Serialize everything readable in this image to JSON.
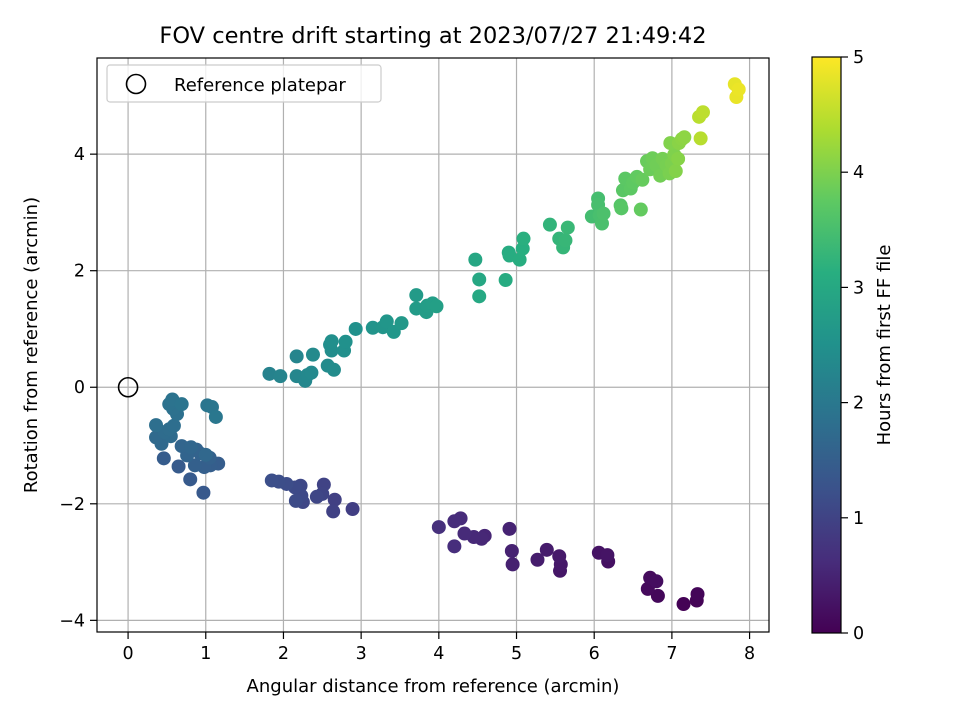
{
  "chart_data": {
    "type": "scatter",
    "title": "FOV centre drift starting at 2023/07/27 21:49:42",
    "xlabel": "Angular distance from reference (arcmin)",
    "ylabel": "Rotation from reference (arcmin)",
    "xlim": [
      -0.4,
      8.25
    ],
    "ylim": [
      -4.2,
      5.65
    ],
    "xticks": [
      0,
      1,
      2,
      3,
      4,
      5,
      6,
      7,
      8
    ],
    "yticks": [
      -4,
      -2,
      0,
      2,
      4
    ],
    "grid": true,
    "legend": {
      "placement": "top-left",
      "entries": [
        {
          "label": "Reference platepar",
          "marker": "open-circle"
        }
      ]
    },
    "reference_point": {
      "x": 0,
      "y": 0
    },
    "colorbar": {
      "label": "Hours from first FF file",
      "range": [
        0,
        5
      ],
      "ticks": [
        0,
        1,
        2,
        3,
        4,
        5
      ],
      "colormap": "viridis"
    },
    "points": [
      {
        "x": 7.15,
        "y": -3.72,
        "c": 0.02
      },
      {
        "x": 7.32,
        "y": -3.66,
        "c": 0.04
      },
      {
        "x": 7.33,
        "y": -3.55,
        "c": 0.06
      },
      {
        "x": 6.82,
        "y": -3.58,
        "c": 0.1
      },
      {
        "x": 6.69,
        "y": -3.46,
        "c": 0.13
      },
      {
        "x": 6.72,
        "y": -3.27,
        "c": 0.15
      },
      {
        "x": 6.8,
        "y": -3.33,
        "c": 0.17
      },
      {
        "x": 6.18,
        "y": -2.99,
        "c": 0.22
      },
      {
        "x": 6.06,
        "y": -2.84,
        "c": 0.25
      },
      {
        "x": 6.17,
        "y": -2.88,
        "c": 0.27
      },
      {
        "x": 5.56,
        "y": -3.15,
        "c": 0.31
      },
      {
        "x": 5.57,
        "y": -3.04,
        "c": 0.33
      },
      {
        "x": 5.55,
        "y": -2.9,
        "c": 0.36
      },
      {
        "x": 5.39,
        "y": -2.79,
        "c": 0.38
      },
      {
        "x": 5.27,
        "y": -2.96,
        "c": 0.4
      },
      {
        "x": 4.95,
        "y": -3.04,
        "c": 0.45
      },
      {
        "x": 4.94,
        "y": -2.81,
        "c": 0.47
      },
      {
        "x": 4.91,
        "y": -2.43,
        "c": 0.49
      },
      {
        "x": 4.59,
        "y": -2.55,
        "c": 0.53
      },
      {
        "x": 4.55,
        "y": -2.6,
        "c": 0.55
      },
      {
        "x": 4.45,
        "y": -2.57,
        "c": 0.57
      },
      {
        "x": 4.33,
        "y": -2.51,
        "c": 0.59
      },
      {
        "x": 4.28,
        "y": -2.25,
        "c": 0.61
      },
      {
        "x": 4.2,
        "y": -2.3,
        "c": 0.63
      },
      {
        "x": 4.2,
        "y": -2.73,
        "c": 0.65
      },
      {
        "x": 4.0,
        "y": -2.4,
        "c": 0.68
      },
      {
        "x": 2.89,
        "y": -2.09,
        "c": 0.92
      },
      {
        "x": 2.66,
        "y": -1.93,
        "c": 0.95
      },
      {
        "x": 2.64,
        "y": -2.13,
        "c": 0.97
      },
      {
        "x": 2.52,
        "y": -1.67,
        "c": 1.0
      },
      {
        "x": 2.5,
        "y": -1.83,
        "c": 1.02
      },
      {
        "x": 2.43,
        "y": -1.88,
        "c": 1.04
      },
      {
        "x": 2.25,
        "y": -1.97,
        "c": 1.06
      },
      {
        "x": 2.22,
        "y": -1.69,
        "c": 1.08
      },
      {
        "x": 2.23,
        "y": -1.86,
        "c": 1.1
      },
      {
        "x": 2.15,
        "y": -1.72,
        "c": 1.12
      },
      {
        "x": 2.16,
        "y": -1.95,
        "c": 1.14
      },
      {
        "x": 2.04,
        "y": -1.66,
        "c": 1.16
      },
      {
        "x": 1.94,
        "y": -1.62,
        "c": 1.18
      },
      {
        "x": 1.85,
        "y": -1.6,
        "c": 1.2
      },
      {
        "x": 0.97,
        "y": -1.81,
        "c": 1.38
      },
      {
        "x": 0.8,
        "y": -1.58,
        "c": 1.4
      },
      {
        "x": 0.65,
        "y": -1.36,
        "c": 1.42
      },
      {
        "x": 0.46,
        "y": -1.22,
        "c": 1.44
      },
      {
        "x": 1.16,
        "y": -1.31,
        "c": 1.47
      },
      {
        "x": 1.06,
        "y": -1.34,
        "c": 1.49
      },
      {
        "x": 0.98,
        "y": -1.37,
        "c": 1.51
      },
      {
        "x": 0.86,
        "y": -1.34,
        "c": 1.53
      },
      {
        "x": 1.05,
        "y": -1.21,
        "c": 1.55
      },
      {
        "x": 0.93,
        "y": -1.14,
        "c": 1.57
      },
      {
        "x": 0.88,
        "y": -1.07,
        "c": 1.59
      },
      {
        "x": 0.76,
        "y": -1.17,
        "c": 1.61
      },
      {
        "x": 0.69,
        "y": -1.01,
        "c": 1.63
      },
      {
        "x": 0.81,
        "y": -1.03,
        "c": 1.65
      },
      {
        "x": 1.0,
        "y": -1.16,
        "c": 1.67
      },
      {
        "x": 0.43,
        "y": -0.97,
        "c": 1.69
      },
      {
        "x": 0.36,
        "y": -0.86,
        "c": 1.71
      },
      {
        "x": 0.55,
        "y": -0.84,
        "c": 1.73
      },
      {
        "x": 0.47,
        "y": -0.77,
        "c": 1.75
      },
      {
        "x": 0.53,
        "y": -0.72,
        "c": 1.77
      },
      {
        "x": 0.59,
        "y": -0.66,
        "c": 1.79
      },
      {
        "x": 0.36,
        "y": -0.65,
        "c": 1.81
      },
      {
        "x": 0.63,
        "y": -0.46,
        "c": 1.83
      },
      {
        "x": 0.58,
        "y": -0.37,
        "c": 1.85
      },
      {
        "x": 0.53,
        "y": -0.29,
        "c": 1.87
      },
      {
        "x": 0.57,
        "y": -0.21,
        "c": 1.89
      },
      {
        "x": 0.69,
        "y": -0.29,
        "c": 1.91
      },
      {
        "x": 1.02,
        "y": -0.31,
        "c": 1.93
      },
      {
        "x": 1.08,
        "y": -0.34,
        "c": 1.95
      },
      {
        "x": 1.13,
        "y": -0.51,
        "c": 1.97
      },
      {
        "x": 1.82,
        "y": 0.23,
        "c": 2.2
      },
      {
        "x": 1.96,
        "y": 0.19,
        "c": 2.23
      },
      {
        "x": 2.17,
        "y": 0.53,
        "c": 2.25
      },
      {
        "x": 2.17,
        "y": 0.19,
        "c": 2.27
      },
      {
        "x": 2.28,
        "y": 0.11,
        "c": 2.29
      },
      {
        "x": 2.31,
        "y": 0.21,
        "c": 2.31
      },
      {
        "x": 2.36,
        "y": 0.25,
        "c": 2.33
      },
      {
        "x": 2.38,
        "y": 0.56,
        "c": 2.35
      },
      {
        "x": 2.57,
        "y": 0.37,
        "c": 2.37
      },
      {
        "x": 2.65,
        "y": 0.3,
        "c": 2.39
      },
      {
        "x": 2.62,
        "y": 0.63,
        "c": 2.41
      },
      {
        "x": 2.6,
        "y": 0.73,
        "c": 2.43
      },
      {
        "x": 2.62,
        "y": 0.79,
        "c": 2.45
      },
      {
        "x": 2.78,
        "y": 0.63,
        "c": 2.47
      },
      {
        "x": 2.8,
        "y": 0.78,
        "c": 2.49
      },
      {
        "x": 2.93,
        "y": 1.0,
        "c": 2.51
      },
      {
        "x": 3.15,
        "y": 1.02,
        "c": 2.57
      },
      {
        "x": 3.28,
        "y": 1.03,
        "c": 2.59
      },
      {
        "x": 3.33,
        "y": 1.13,
        "c": 2.61
      },
      {
        "x": 3.42,
        "y": 0.95,
        "c": 2.63
      },
      {
        "x": 3.52,
        "y": 1.1,
        "c": 2.65
      },
      {
        "x": 3.71,
        "y": 1.58,
        "c": 2.7
      },
      {
        "x": 3.71,
        "y": 1.35,
        "c": 2.72
      },
      {
        "x": 3.84,
        "y": 1.29,
        "c": 2.74
      },
      {
        "x": 3.85,
        "y": 1.4,
        "c": 2.76
      },
      {
        "x": 3.92,
        "y": 1.44,
        "c": 2.78
      },
      {
        "x": 3.97,
        "y": 1.39,
        "c": 2.8
      },
      {
        "x": 4.47,
        "y": 2.19,
        "c": 2.95
      },
      {
        "x": 4.52,
        "y": 1.85,
        "c": 2.97
      },
      {
        "x": 4.52,
        "y": 1.56,
        "c": 2.99
      },
      {
        "x": 4.86,
        "y": 1.84,
        "c": 3.05
      },
      {
        "x": 4.9,
        "y": 2.31,
        "c": 3.07
      },
      {
        "x": 4.91,
        "y": 2.26,
        "c": 3.09
      },
      {
        "x": 5.04,
        "y": 2.19,
        "c": 3.11
      },
      {
        "x": 5.08,
        "y": 2.38,
        "c": 3.13
      },
      {
        "x": 5.09,
        "y": 2.55,
        "c": 3.15
      },
      {
        "x": 5.43,
        "y": 2.79,
        "c": 3.25
      },
      {
        "x": 5.55,
        "y": 2.55,
        "c": 3.27
      },
      {
        "x": 5.6,
        "y": 2.4,
        "c": 3.29
      },
      {
        "x": 5.63,
        "y": 2.52,
        "c": 3.31
      },
      {
        "x": 5.66,
        "y": 2.74,
        "c": 3.33
      },
      {
        "x": 5.97,
        "y": 2.93,
        "c": 3.45
      },
      {
        "x": 6.05,
        "y": 3.24,
        "c": 3.47
      },
      {
        "x": 6.05,
        "y": 3.13,
        "c": 3.49
      },
      {
        "x": 6.07,
        "y": 2.95,
        "c": 3.51
      },
      {
        "x": 6.1,
        "y": 2.81,
        "c": 3.53
      },
      {
        "x": 6.12,
        "y": 2.98,
        "c": 3.55
      },
      {
        "x": 6.34,
        "y": 3.12,
        "c": 3.65
      },
      {
        "x": 6.35,
        "y": 3.07,
        "c": 3.67
      },
      {
        "x": 6.37,
        "y": 3.38,
        "c": 3.69
      },
      {
        "x": 6.4,
        "y": 3.58,
        "c": 3.71
      },
      {
        "x": 6.47,
        "y": 3.41,
        "c": 3.73
      },
      {
        "x": 6.5,
        "y": 3.51,
        "c": 3.75
      },
      {
        "x": 6.55,
        "y": 3.61,
        "c": 3.77
      },
      {
        "x": 6.6,
        "y": 3.05,
        "c": 3.79
      },
      {
        "x": 6.62,
        "y": 3.56,
        "c": 3.81
      },
      {
        "x": 6.68,
        "y": 3.88,
        "c": 3.83
      },
      {
        "x": 6.72,
        "y": 3.74,
        "c": 3.85
      },
      {
        "x": 6.75,
        "y": 3.93,
        "c": 3.87
      },
      {
        "x": 6.8,
        "y": 3.81,
        "c": 3.89
      },
      {
        "x": 6.85,
        "y": 3.63,
        "c": 3.91
      },
      {
        "x": 6.88,
        "y": 3.92,
        "c": 3.93
      },
      {
        "x": 6.93,
        "y": 3.81,
        "c": 3.95
      },
      {
        "x": 6.97,
        "y": 3.67,
        "c": 3.97
      },
      {
        "x": 7.0,
        "y": 3.84,
        "c": 3.99
      },
      {
        "x": 7.03,
        "y": 3.99,
        "c": 4.01
      },
      {
        "x": 6.98,
        "y": 4.19,
        "c": 4.03
      },
      {
        "x": 7.05,
        "y": 3.71,
        "c": 4.05
      },
      {
        "x": 7.08,
        "y": 3.92,
        "c": 4.07
      },
      {
        "x": 7.09,
        "y": 4.19,
        "c": 4.09
      },
      {
        "x": 7.13,
        "y": 4.26,
        "c": 4.11
      },
      {
        "x": 7.16,
        "y": 4.29,
        "c": 4.13
      },
      {
        "x": 7.37,
        "y": 4.27,
        "c": 4.45
      },
      {
        "x": 7.35,
        "y": 4.64,
        "c": 4.47
      },
      {
        "x": 7.4,
        "y": 4.72,
        "c": 4.5
      },
      {
        "x": 7.81,
        "y": 5.2,
        "c": 4.82
      },
      {
        "x": 7.83,
        "y": 4.98,
        "c": 4.84
      },
      {
        "x": 7.86,
        "y": 5.11,
        "c": 4.86
      }
    ]
  }
}
